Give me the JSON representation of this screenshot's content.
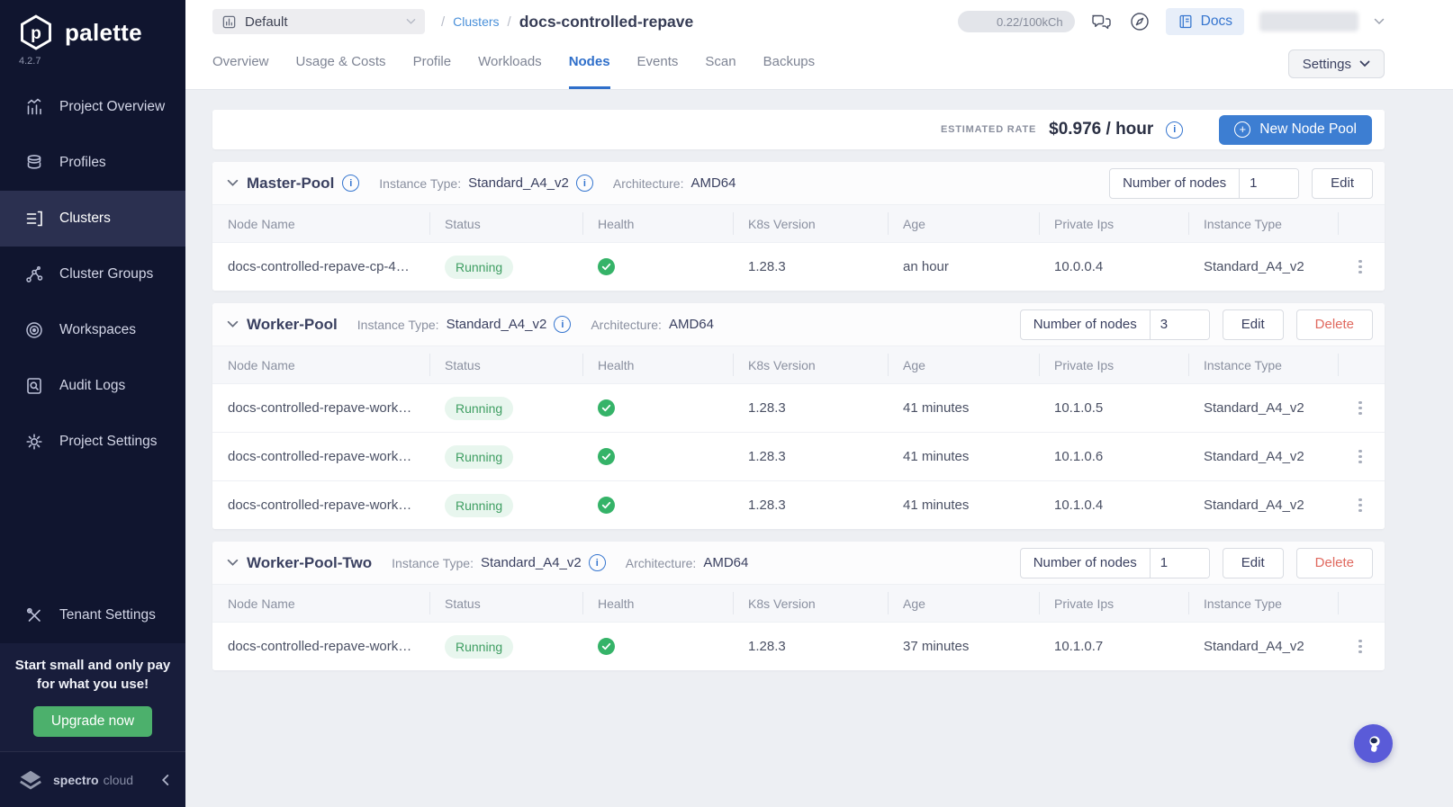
{
  "colors": {
    "primary_blue": "#3D7ED2",
    "active_tab_blue": "#2F6FCA",
    "link_blue": "#4A90D9",
    "success_green": "#35B368",
    "badge_green_text": "#3F9E62",
    "badge_green_bg": "#E8F6EE",
    "delete_red": "#E0695F",
    "sidebar_bg": "#10152F",
    "sidebar_active_bg": "#2B3050",
    "upgrade_green": "#4CB06C",
    "assistant_purple": "#5A5BD8",
    "page_bg": "#EDEFF3"
  },
  "sidebar": {
    "logo_text": "palette",
    "version": "4.2.7",
    "items": [
      {
        "label": "Project Overview",
        "icon": "bar-chart-icon",
        "active": false
      },
      {
        "label": "Profiles",
        "icon": "layers-icon",
        "active": false
      },
      {
        "label": "Clusters",
        "icon": "clusters-icon",
        "active": true
      },
      {
        "label": "Cluster Groups",
        "icon": "network-icon",
        "active": false
      },
      {
        "label": "Workspaces",
        "icon": "workspaces-icon",
        "active": false
      },
      {
        "label": "Audit Logs",
        "icon": "audit-logs-icon",
        "active": false
      },
      {
        "label": "Project Settings",
        "icon": "gear-icon",
        "active": false
      }
    ],
    "tenant_settings": {
      "label": "Tenant Settings",
      "icon": "tools-icon"
    },
    "promo": {
      "line1": "Start small and only pay",
      "line2": "for what you use!",
      "button_label": "Upgrade now"
    },
    "footer": {
      "brand_primary": "spectro",
      "brand_secondary": "cloud"
    }
  },
  "topbar": {
    "project_selector": {
      "label": "Default",
      "icon": "project-icon"
    },
    "breadcrumb": {
      "separator": "/",
      "parent": "Clusters",
      "current": "docs-controlled-repave"
    },
    "usage_pill": "0.22/100kCh",
    "docs_button": {
      "label": "Docs",
      "icon": "book-icon"
    }
  },
  "tabs": {
    "items": [
      {
        "label": "Overview",
        "active": false
      },
      {
        "label": "Usage & Costs",
        "active": false
      },
      {
        "label": "Profile",
        "active": false
      },
      {
        "label": "Workloads",
        "active": false
      },
      {
        "label": "Nodes",
        "active": true
      },
      {
        "label": "Events",
        "active": false
      },
      {
        "label": "Scan",
        "active": false
      },
      {
        "label": "Backups",
        "active": false
      }
    ],
    "settings_button": "Settings"
  },
  "rate_bar": {
    "label": "ESTIMATED RATE",
    "value": "$0.976 / hour",
    "new_node_pool_button": "New Node Pool"
  },
  "table": {
    "columns": [
      "Node Name",
      "Status",
      "Health",
      "K8s Version",
      "Age",
      "Private Ips",
      "Instance Type"
    ]
  },
  "pool_labels": {
    "instance_type": "Instance Type:",
    "architecture": "Architecture:",
    "nodes": "Number of nodes",
    "edit": "Edit",
    "delete": "Delete"
  },
  "pools": [
    {
      "name": "Master-Pool",
      "title_info": true,
      "instance_type": "Standard_A4_v2",
      "architecture": "AMD64",
      "nodes_count": "1",
      "can_delete": false,
      "rows": [
        {
          "name": "docs-controlled-repave-cp-4…",
          "status": "Running",
          "health": "ok",
          "k8s": "1.28.3",
          "age": "an hour",
          "ip": "10.0.0.4",
          "instance": "Standard_A4_v2"
        }
      ]
    },
    {
      "name": "Worker-Pool",
      "title_info": false,
      "instance_type": "Standard_A4_v2",
      "architecture": "AMD64",
      "nodes_count": "3",
      "can_delete": true,
      "rows": [
        {
          "name": "docs-controlled-repave-work…",
          "status": "Running",
          "health": "ok",
          "k8s": "1.28.3",
          "age": "41 minutes",
          "ip": "10.1.0.5",
          "instance": "Standard_A4_v2"
        },
        {
          "name": "docs-controlled-repave-work…",
          "status": "Running",
          "health": "ok",
          "k8s": "1.28.3",
          "age": "41 minutes",
          "ip": "10.1.0.6",
          "instance": "Standard_A4_v2"
        },
        {
          "name": "docs-controlled-repave-work…",
          "status": "Running",
          "health": "ok",
          "k8s": "1.28.3",
          "age": "41 minutes",
          "ip": "10.1.0.4",
          "instance": "Standard_A4_v2"
        }
      ]
    },
    {
      "name": "Worker-Pool-Two",
      "title_info": false,
      "instance_type": "Standard_A4_v2",
      "architecture": "AMD64",
      "nodes_count": "1",
      "can_delete": true,
      "rows": [
        {
          "name": "docs-controlled-repave-work…",
          "status": "Running",
          "health": "ok",
          "k8s": "1.28.3",
          "age": "37 minutes",
          "ip": "10.1.0.7",
          "instance": "Standard_A4_v2"
        }
      ]
    }
  ]
}
